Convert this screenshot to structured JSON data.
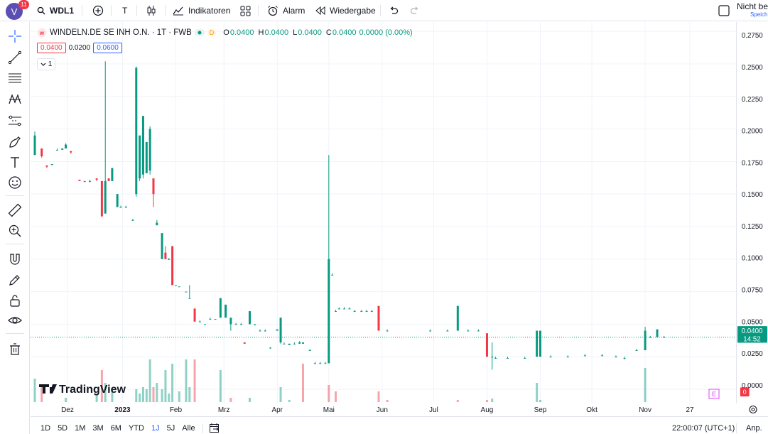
{
  "header": {
    "notification_count": "11",
    "avatar_letter": "V",
    "symbol": "WDL1",
    "interval_label": "T",
    "indicators_label": "Indikatoren",
    "alert_label": "Alarm",
    "replay_label": "Wiedergabe",
    "save_title": "Nicht be",
    "save_sub": "Speich"
  },
  "legend": {
    "name": "WINDELN.DE SE INH O.N. · 1T · FWB",
    "d_label": "D",
    "o_label": "O",
    "o_value": "0.0400",
    "h_label": "H",
    "h_value": "0.0400",
    "l_label": "L",
    "l_value": "0.0400",
    "c_label": "C",
    "c_value": "0.0400",
    "change": "0.0000 (0.00%)",
    "bid": "0.0400",
    "spread": "0.0200",
    "ask": "0.0600",
    "collapse_count": "1"
  },
  "price_tag": {
    "price": "0.0400",
    "countdown": "14:52"
  },
  "volume_tag": "0",
  "earnings_marker": "E",
  "watermark": "TradingView",
  "bottom": {
    "timeframes": [
      "1D",
      "5D",
      "1M",
      "3M",
      "6M",
      "YTD",
      "1J",
      "5J",
      "Alle"
    ],
    "active_timeframe": "1J",
    "clock": "22:00:07 (UTC+1)",
    "adjust_label": "Anp."
  },
  "colors": {
    "up": "#089981",
    "down": "#f23645",
    "accent": "#2962ff"
  },
  "chart_data": {
    "type": "candlestick",
    "title": "WINDELN.DE SE INH O.N. · 1T · FWB",
    "y_ticks": [
      "0.0000",
      "0.0250",
      "0.0500",
      "0.0750",
      "0.1000",
      "0.1250",
      "0.1500",
      "0.1750",
      "0.2000",
      "0.2250",
      "0.2500",
      "0.2750"
    ],
    "ylim": [
      0,
      0.28
    ],
    "x_ticks": [
      "Dez",
      "2023",
      "Feb",
      "Mrz",
      "Apr",
      "Mai",
      "Jun",
      "Jul",
      "Aug",
      "Sep",
      "Okt",
      "Nov",
      "27"
    ],
    "x_tick_days": [
      19,
      51,
      82,
      110,
      141,
      171,
      202,
      232,
      263,
      294,
      324,
      355,
      381
    ],
    "last_price": 0.04,
    "candles": [
      {
        "d": 0,
        "o": 0.18,
        "h": 0.198,
        "l": 0.18,
        "c": 0.195
      },
      {
        "d": 4,
        "o": 0.185,
        "h": 0.185,
        "l": 0.178,
        "c": 0.179
      },
      {
        "d": 7,
        "o": 0.172,
        "h": 0.172,
        "l": 0.17,
        "c": 0.171
      },
      {
        "d": 10,
        "o": 0.173,
        "h": 0.173,
        "l": 0.172,
        "c": 0.173
      },
      {
        "d": 13,
        "o": 0.184,
        "h": 0.185,
        "l": 0.184,
        "c": 0.184
      },
      {
        "d": 16,
        "o": 0.184,
        "h": 0.185,
        "l": 0.184,
        "c": 0.185
      },
      {
        "d": 18,
        "o": 0.185,
        "h": 0.189,
        "l": 0.185,
        "c": 0.188
      },
      {
        "d": 21,
        "o": 0.183,
        "h": 0.183,
        "l": 0.181,
        "c": 0.182
      },
      {
        "d": 26,
        "o": 0.161,
        "h": 0.161,
        "l": 0.16,
        "c": 0.16
      },
      {
        "d": 29,
        "o": 0.16,
        "h": 0.16,
        "l": 0.159,
        "c": 0.16
      },
      {
        "d": 32,
        "o": 0.16,
        "h": 0.161,
        "l": 0.159,
        "c": 0.16
      },
      {
        "d": 36,
        "o": 0.162,
        "h": 0.162,
        "l": 0.16,
        "c": 0.161
      },
      {
        "d": 39,
        "o": 0.16,
        "h": 0.16,
        "l": 0.132,
        "c": 0.133
      },
      {
        "d": 41,
        "o": 0.135,
        "h": 0.252,
        "l": 0.135,
        "c": 0.16
      },
      {
        "d": 43,
        "o": 0.162,
        "h": 0.162,
        "l": 0.16,
        "c": 0.16
      },
      {
        "d": 45,
        "o": 0.16,
        "h": 0.17,
        "l": 0.16,
        "c": 0.17
      },
      {
        "d": 48,
        "o": 0.14,
        "h": 0.15,
        "l": 0.14,
        "c": 0.15
      },
      {
        "d": 50,
        "o": 0.14,
        "h": 0.141,
        "l": 0.14,
        "c": 0.14
      },
      {
        "d": 53,
        "o": 0.14,
        "h": 0.141,
        "l": 0.14,
        "c": 0.14
      },
      {
        "d": 57,
        "o": 0.13,
        "h": 0.131,
        "l": 0.13,
        "c": 0.13
      },
      {
        "d": 59,
        "o": 0.15,
        "h": 0.248,
        "l": 0.148,
        "c": 0.247
      },
      {
        "d": 61,
        "o": 0.162,
        "h": 0.195,
        "l": 0.16,
        "c": 0.195
      },
      {
        "d": 63,
        "o": 0.165,
        "h": 0.21,
        "l": 0.162,
        "c": 0.21
      },
      {
        "d": 65,
        "o": 0.166,
        "h": 0.19,
        "l": 0.166,
        "c": 0.19
      },
      {
        "d": 67,
        "o": 0.168,
        "h": 0.202,
        "l": 0.165,
        "c": 0.2
      },
      {
        "d": 69,
        "o": 0.162,
        "h": 0.162,
        "l": 0.14,
        "c": 0.15
      },
      {
        "d": 71,
        "o": 0.126,
        "h": 0.13,
        "l": 0.126,
        "c": 0.128
      },
      {
        "d": 74,
        "o": 0.1,
        "h": 0.12,
        "l": 0.1,
        "c": 0.12
      },
      {
        "d": 76,
        "o": 0.105,
        "h": 0.11,
        "l": 0.1,
        "c": 0.1
      },
      {
        "d": 78,
        "o": 0.1,
        "h": 0.101,
        "l": 0.1,
        "c": 0.1
      },
      {
        "d": 80,
        "o": 0.11,
        "h": 0.11,
        "l": 0.08,
        "c": 0.08
      },
      {
        "d": 82,
        "o": 0.08,
        "h": 0.08,
        "l": 0.08,
        "c": 0.08
      },
      {
        "d": 84,
        "o": 0.079,
        "h": 0.079,
        "l": 0.079,
        "c": 0.079
      },
      {
        "d": 88,
        "o": 0.075,
        "h": 0.075,
        "l": 0.075,
        "c": 0.075
      },
      {
        "d": 90,
        "o": 0.07,
        "h": 0.08,
        "l": 0.07,
        "c": 0.07
      },
      {
        "d": 93,
        "o": 0.062,
        "h": 0.062,
        "l": 0.052,
        "c": 0.052
      },
      {
        "d": 96,
        "o": 0.052,
        "h": 0.053,
        "l": 0.052,
        "c": 0.052
      },
      {
        "d": 99,
        "o": 0.05,
        "h": 0.05,
        "l": 0.05,
        "c": 0.05
      },
      {
        "d": 102,
        "o": 0.054,
        "h": 0.055,
        "l": 0.054,
        "c": 0.054
      },
      {
        "d": 105,
        "o": 0.054,
        "h": 0.054,
        "l": 0.054,
        "c": 0.054
      },
      {
        "d": 108,
        "o": 0.055,
        "h": 0.07,
        "l": 0.055,
        "c": 0.07
      },
      {
        "d": 111,
        "o": 0.055,
        "h": 0.065,
        "l": 0.055,
        "c": 0.065
      },
      {
        "d": 114,
        "o": 0.05,
        "h": 0.055,
        "l": 0.045,
        "c": 0.055
      },
      {
        "d": 117,
        "o": 0.05,
        "h": 0.051,
        "l": 0.05,
        "c": 0.05
      },
      {
        "d": 120,
        "o": 0.05,
        "h": 0.051,
        "l": 0.05,
        "c": 0.05
      },
      {
        "d": 122,
        "o": 0.036,
        "h": 0.036,
        "l": 0.035,
        "c": 0.035
      },
      {
        "d": 125,
        "o": 0.05,
        "h": 0.06,
        "l": 0.05,
        "c": 0.06
      },
      {
        "d": 128,
        "o": 0.05,
        "h": 0.05,
        "l": 0.049,
        "c": 0.05
      },
      {
        "d": 131,
        "o": 0.045,
        "h": 0.046,
        "l": 0.045,
        "c": 0.045
      },
      {
        "d": 134,
        "o": 0.045,
        "h": 0.046,
        "l": 0.045,
        "c": 0.045
      },
      {
        "d": 137,
        "o": 0.032,
        "h": 0.032,
        "l": 0.031,
        "c": 0.032
      },
      {
        "d": 141,
        "o": 0.045,
        "h": 0.046,
        "l": 0.045,
        "c": 0.046
      },
      {
        "d": 143,
        "o": 0.036,
        "h": 0.055,
        "l": 0.035,
        "c": 0.055
      },
      {
        "d": 145,
        "o": 0.035,
        "h": 0.036,
        "l": 0.035,
        "c": 0.035
      },
      {
        "d": 148,
        "o": 0.034,
        "h": 0.035,
        "l": 0.034,
        "c": 0.035
      },
      {
        "d": 151,
        "o": 0.035,
        "h": 0.036,
        "l": 0.035,
        "c": 0.035
      },
      {
        "d": 154,
        "o": 0.035,
        "h": 0.037,
        "l": 0.035,
        "c": 0.036
      },
      {
        "d": 156,
        "o": 0.035,
        "h": 0.036,
        "l": 0.035,
        "c": 0.036
      },
      {
        "d": 160,
        "o": 0.03,
        "h": 0.031,
        "l": 0.03,
        "c": 0.03
      },
      {
        "d": 163,
        "o": 0.02,
        "h": 0.021,
        "l": 0.02,
        "c": 0.02
      },
      {
        "d": 166,
        "o": 0.02,
        "h": 0.021,
        "l": 0.02,
        "c": 0.02
      },
      {
        "d": 169,
        "o": 0.02,
        "h": 0.021,
        "l": 0.02,
        "c": 0.02
      },
      {
        "d": 171,
        "o": 0.02,
        "h": 0.18,
        "l": 0.02,
        "c": 0.1
      },
      {
        "d": 173,
        "o": 0.088,
        "h": 0.089,
        "l": 0.088,
        "c": 0.088
      },
      {
        "d": 175,
        "o": 0.06,
        "h": 0.061,
        "l": 0.06,
        "c": 0.06
      },
      {
        "d": 177,
        "o": 0.062,
        "h": 0.063,
        "l": 0.062,
        "c": 0.062
      },
      {
        "d": 180,
        "o": 0.062,
        "h": 0.063,
        "l": 0.062,
        "c": 0.062
      },
      {
        "d": 183,
        "o": 0.062,
        "h": 0.063,
        "l": 0.062,
        "c": 0.062
      },
      {
        "d": 186,
        "o": 0.06,
        "h": 0.061,
        "l": 0.06,
        "c": 0.06
      },
      {
        "d": 190,
        "o": 0.06,
        "h": 0.061,
        "l": 0.06,
        "c": 0.06
      },
      {
        "d": 193,
        "o": 0.06,
        "h": 0.061,
        "l": 0.06,
        "c": 0.06
      },
      {
        "d": 196,
        "o": 0.06,
        "h": 0.061,
        "l": 0.06,
        "c": 0.06
      },
      {
        "d": 200,
        "o": 0.064,
        "h": 0.064,
        "l": 0.045,
        "c": 0.045
      },
      {
        "d": 205,
        "o": 0.045,
        "h": 0.046,
        "l": 0.045,
        "c": 0.045
      },
      {
        "d": 230,
        "o": 0.045,
        "h": 0.046,
        "l": 0.045,
        "c": 0.045
      },
      {
        "d": 240,
        "o": 0.045,
        "h": 0.046,
        "l": 0.045,
        "c": 0.045
      },
      {
        "d": 246,
        "o": 0.045,
        "h": 0.064,
        "l": 0.045,
        "c": 0.064
      },
      {
        "d": 252,
        "o": 0.045,
        "h": 0.046,
        "l": 0.045,
        "c": 0.045
      },
      {
        "d": 258,
        "o": 0.045,
        "h": 0.046,
        "l": 0.045,
        "c": 0.045
      },
      {
        "d": 263,
        "o": 0.043,
        "h": 0.043,
        "l": 0.025,
        "c": 0.025
      },
      {
        "d": 266,
        "o": 0.025,
        "h": 0.036,
        "l": 0.015,
        "c": 0.025
      },
      {
        "d": 268,
        "o": 0.024,
        "h": 0.025,
        "l": 0.024,
        "c": 0.024
      },
      {
        "d": 275,
        "o": 0.024,
        "h": 0.025,
        "l": 0.024,
        "c": 0.024
      },
      {
        "d": 285,
        "o": 0.024,
        "h": 0.025,
        "l": 0.024,
        "c": 0.024
      },
      {
        "d": 292,
        "o": 0.025,
        "h": 0.045,
        "l": 0.025,
        "c": 0.045
      },
      {
        "d": 294,
        "o": 0.025,
        "h": 0.045,
        "l": 0.025,
        "c": 0.045
      },
      {
        "d": 300,
        "o": 0.025,
        "h": 0.026,
        "l": 0.025,
        "c": 0.025
      },
      {
        "d": 310,
        "o": 0.025,
        "h": 0.026,
        "l": 0.025,
        "c": 0.025
      },
      {
        "d": 320,
        "o": 0.026,
        "h": 0.027,
        "l": 0.026,
        "c": 0.026
      },
      {
        "d": 330,
        "o": 0.026,
        "h": 0.027,
        "l": 0.026,
        "c": 0.026
      },
      {
        "d": 338,
        "o": 0.025,
        "h": 0.026,
        "l": 0.025,
        "c": 0.025
      },
      {
        "d": 343,
        "o": 0.024,
        "h": 0.025,
        "l": 0.023,
        "c": 0.024
      },
      {
        "d": 350,
        "o": 0.03,
        "h": 0.031,
        "l": 0.03,
        "c": 0.03
      },
      {
        "d": 355,
        "o": 0.03,
        "h": 0.048,
        "l": 0.03,
        "c": 0.045
      },
      {
        "d": 358,
        "o": 0.04,
        "h": 0.041,
        "l": 0.04,
        "c": 0.04
      },
      {
        "d": 362,
        "o": 0.04,
        "h": 0.046,
        "l": 0.04,
        "c": 0.046
      },
      {
        "d": 366,
        "o": 0.04,
        "h": 0.041,
        "l": 0.04,
        "c": 0.04
      }
    ],
    "volume": [
      {
        "d": 0,
        "v": 0.55,
        "up": true
      },
      {
        "d": 4,
        "v": 0.35,
        "up": false
      },
      {
        "d": 18,
        "v": 0.1,
        "up": true
      },
      {
        "d": 36,
        "v": 0.2,
        "up": true
      },
      {
        "d": 39,
        "v": 0.75,
        "up": false
      },
      {
        "d": 41,
        "v": 0.45,
        "up": true
      },
      {
        "d": 45,
        "v": 0.3,
        "up": true
      },
      {
        "d": 59,
        "v": 0.3,
        "up": true
      },
      {
        "d": 61,
        "v": 0.2,
        "up": true
      },
      {
        "d": 63,
        "v": 0.35,
        "up": true
      },
      {
        "d": 65,
        "v": 0.3,
        "up": true
      },
      {
        "d": 67,
        "v": 1.0,
        "up": true
      },
      {
        "d": 69,
        "v": 0.35,
        "up": false
      },
      {
        "d": 71,
        "v": 0.45,
        "up": true
      },
      {
        "d": 74,
        "v": 0.3,
        "up": true
      },
      {
        "d": 76,
        "v": 0.75,
        "up": true
      },
      {
        "d": 78,
        "v": 0.2,
        "up": true
      },
      {
        "d": 80,
        "v": 0.9,
        "up": true
      },
      {
        "d": 84,
        "v": 0.25,
        "up": true
      },
      {
        "d": 88,
        "v": 1.0,
        "up": true
      },
      {
        "d": 90,
        "v": 0.35,
        "up": true
      },
      {
        "d": 93,
        "v": 1.0,
        "up": false
      },
      {
        "d": 108,
        "v": 0.75,
        "up": true
      },
      {
        "d": 114,
        "v": 0.1,
        "up": false
      },
      {
        "d": 125,
        "v": 0.1,
        "up": true
      },
      {
        "d": 143,
        "v": 0.35,
        "up": true
      },
      {
        "d": 148,
        "v": 0.05,
        "up": true
      },
      {
        "d": 156,
        "v": 0.9,
        "up": false
      },
      {
        "d": 171,
        "v": 0.4,
        "up": false
      },
      {
        "d": 175,
        "v": 0.25,
        "up": false
      },
      {
        "d": 200,
        "v": 0.25,
        "up": false
      },
      {
        "d": 205,
        "v": 0.05,
        "up": false
      },
      {
        "d": 246,
        "v": 0.05,
        "up": false
      },
      {
        "d": 263,
        "v": 0.05,
        "up": false
      },
      {
        "d": 266,
        "v": 0.08,
        "up": true
      },
      {
        "d": 292,
        "v": 0.45,
        "up": true
      },
      {
        "d": 294,
        "v": 0.05,
        "up": true
      },
      {
        "d": 355,
        "v": 0.8,
        "up": true
      }
    ],
    "volume_scale": [
      "low",
      "high"
    ]
  }
}
